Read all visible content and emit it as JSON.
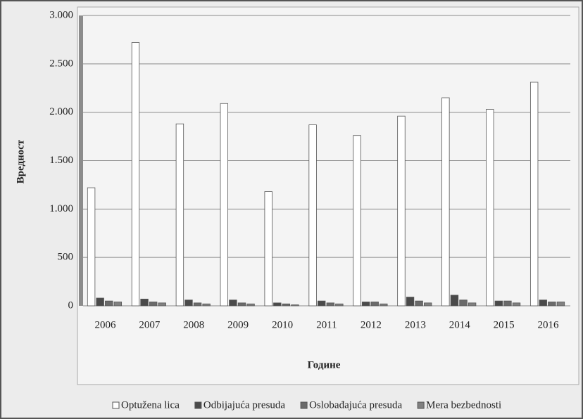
{
  "chart_data": {
    "type": "bar",
    "xlabel": "Године",
    "ylabel": "Вредност",
    "categories": [
      "2006",
      "2007",
      "2008",
      "2009",
      "2010",
      "2011",
      "2012",
      "2013",
      "2014",
      "2015",
      "2016"
    ],
    "series": [
      {
        "name": "Optužena lica",
        "color": "#ffffff",
        "values": [
          1220,
          2720,
          1880,
          2090,
          1180,
          1870,
          1760,
          1960,
          2150,
          2030,
          2310
        ]
      },
      {
        "name": "Odbijajuća presuda",
        "color": "#4a4a4a",
        "values": [
          80,
          70,
          60,
          60,
          30,
          50,
          40,
          90,
          110,
          50,
          60
        ]
      },
      {
        "name": "Oslobađajuća presuda",
        "color": "#6a6a6a",
        "values": [
          50,
          40,
          30,
          30,
          20,
          30,
          40,
          50,
          60,
          50,
          40
        ]
      },
      {
        "name": "Mera bezbednosti",
        "color": "#808080",
        "values": [
          40,
          30,
          20,
          20,
          10,
          20,
          20,
          30,
          30,
          30,
          40
        ]
      }
    ],
    "ylim": [
      0,
      3000
    ],
    "yticks": [
      0,
      500,
      {
        "value": 1000,
        "label": "1.000"
      },
      {
        "value": 1500,
        "label": "1.500"
      },
      {
        "value": 2000,
        "label": "2.000"
      },
      {
        "value": 2500,
        "label": "2.500"
      },
      {
        "value": 3000,
        "label": "3.000"
      }
    ],
    "grid": true,
    "legend": "bottom"
  }
}
